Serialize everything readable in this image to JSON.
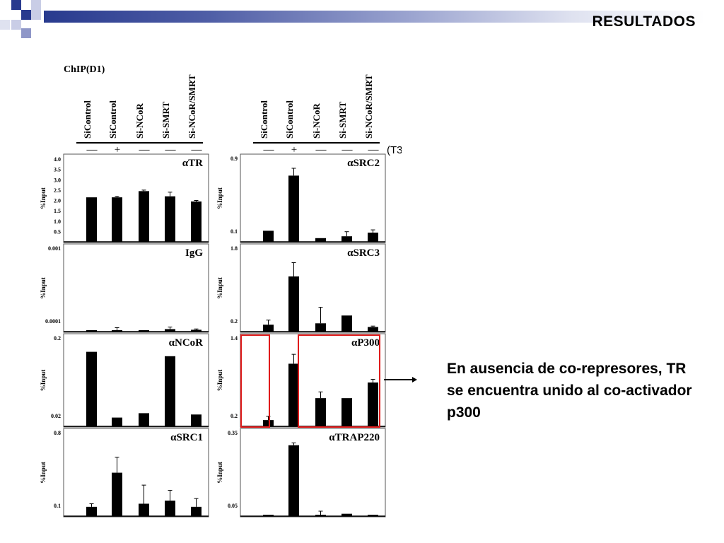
{
  "slide": {
    "title": "RESULTADOS",
    "note": "En ausencia de co-represores, TR se encuentra unido al co-activador p300",
    "brand_color": "#283a8e"
  },
  "figure": {
    "chip_label": "ChIP(D1)",
    "t3_label": "(T3)",
    "y_label": "%Input",
    "lanes": [
      "SiControl",
      "SiControl",
      "Si-NCoR",
      "Si-SMRT",
      "Si-NCoR/SMRT"
    ],
    "t3": [
      "—",
      "+",
      "—",
      "—",
      "—"
    ],
    "highlight_color": "#e01b1b"
  },
  "chart_data": [
    {
      "type": "bar",
      "title": "αTR",
      "categories": [
        "SiControl",
        "SiControl",
        "Si-NCoR",
        "Si-SMRT",
        "Si-NCoR/SMRT"
      ],
      "values": [
        2.15,
        2.15,
        2.45,
        2.2,
        1.95
      ],
      "errors": [
        0,
        0.05,
        0.05,
        0.2,
        0.05
      ],
      "ylim": [
        0,
        4.0
      ],
      "yticks": [
        "4.0",
        "3.5",
        "3.0",
        "2.5",
        "2.0",
        "1.5",
        "1.0",
        "0.5"
      ],
      "ylabel": "%Input"
    },
    {
      "type": "bar",
      "title": "IgG",
      "categories": [
        "SiControl",
        "SiControl",
        "Si-NCoR",
        "Si-SMRT",
        "Si-NCoR/SMRT"
      ],
      "values": [
        1e-05,
        1.5e-05,
        8e-06,
        3e-05,
        2.2e-05
      ],
      "errors": [
        0,
        3e-05,
        0,
        2.5e-05,
        1e-05
      ],
      "ylim": [
        0,
        0.001
      ],
      "yticks": [
        "0.001",
        "0.0001"
      ],
      "ylabel": "%Input"
    },
    {
      "type": "bar",
      "title": "αNCoR",
      "categories": [
        "SiControl",
        "SiControl",
        "Si-NCoR",
        "Si-SMRT",
        "Si-NCoR/SMRT"
      ],
      "values": [
        0.17,
        0.02,
        0.03,
        0.16,
        0.027
      ],
      "errors": [
        0,
        0,
        0,
        0,
        0
      ],
      "ylim": [
        0,
        0.2
      ],
      "yticks": [
        "0.2",
        "0.02"
      ],
      "ylabel": "%Input"
    },
    {
      "type": "bar",
      "title": "αSRC1",
      "categories": [
        "SiControl",
        "SiControl",
        "Si-NCoR",
        "Si-SMRT",
        "Si-NCoR/SMRT"
      ],
      "values": [
        0.09,
        0.42,
        0.12,
        0.15,
        0.09
      ],
      "errors": [
        0.03,
        0.15,
        0.18,
        0.1,
        0.08
      ],
      "ylim": [
        0,
        0.8
      ],
      "yticks": [
        "0.8",
        "0.1"
      ],
      "ylabel": "%Input"
    },
    {
      "type": "bar",
      "title": "αSRC2",
      "categories": [
        "SiControl",
        "SiControl",
        "Si-NCoR",
        "Si-SMRT",
        "Si-NCoR/SMRT"
      ],
      "values": [
        0.12,
        0.72,
        0.04,
        0.06,
        0.1
      ],
      "errors": [
        0,
        0.08,
        0,
        0.05,
        0.03
      ],
      "ylim": [
        0,
        0.9
      ],
      "yticks": [
        "0.9",
        "0.1"
      ],
      "ylabel": "%Input"
    },
    {
      "type": "bar",
      "title": "αSRC3",
      "categories": [
        "SiControl",
        "SiControl",
        "Si-NCoR",
        "Si-SMRT",
        "Si-NCoR/SMRT"
      ],
      "values": [
        0.15,
        1.2,
        0.18,
        0.35,
        0.1
      ],
      "errors": [
        0.1,
        0.3,
        0.35,
        0,
        0.02
      ],
      "ylim": [
        0,
        1.8
      ],
      "yticks": [
        "1.8",
        "0.2"
      ],
      "ylabel": "%Input"
    },
    {
      "type": "bar",
      "title": "αP300",
      "categories": [
        "SiControl",
        "SiControl",
        "Si-NCoR",
        "Si-SMRT",
        "Si-NCoR/SMRT"
      ],
      "values": [
        0.1,
        1.0,
        0.45,
        0.45,
        0.7
      ],
      "errors": [
        0.06,
        0.15,
        0.1,
        0,
        0.05
      ],
      "ylim": [
        0,
        1.4
      ],
      "yticks": [
        "1.4",
        "0.2"
      ],
      "ylabel": "%Input"
    },
    {
      "type": "bar",
      "title": "αTRAP220",
      "categories": [
        "SiControl",
        "SiControl",
        "Si-NCoR",
        "Si-SMRT",
        "Si-NCoR/SMRT"
      ],
      "values": [
        0.005,
        0.3,
        0.004,
        0.01,
        0.004
      ],
      "errors": [
        0,
        0.01,
        0.015,
        0,
        0
      ],
      "ylim": [
        0,
        0.35
      ],
      "yticks": [
        "0.35",
        "0.05"
      ],
      "ylabel": "%Input"
    }
  ]
}
